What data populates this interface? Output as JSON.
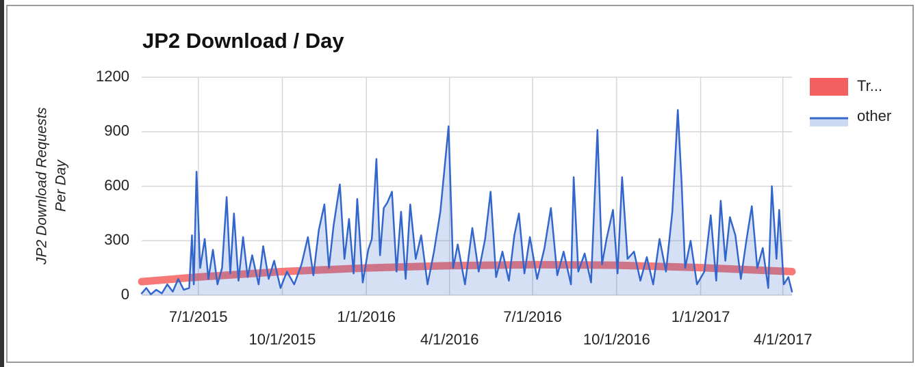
{
  "chart_data": {
    "type": "line",
    "title": "JP2 Download / Day",
    "y_label_lines": [
      "JP2 Download Requests",
      "Per Day"
    ],
    "ylim": [
      0,
      1200
    ],
    "yticks": [
      0,
      300,
      600,
      900,
      1200
    ],
    "xlim": [
      "2015-04-30",
      "2017-04-11"
    ],
    "xticks": [
      {
        "value": "2015-07-01",
        "label": "7/1/2015"
      },
      {
        "value": "2015-10-01",
        "label": "10/1/2015"
      },
      {
        "value": "2016-01-01",
        "label": "1/1/2016"
      },
      {
        "value": "2016-04-01",
        "label": "4/1/2016"
      },
      {
        "value": "2016-07-01",
        "label": "7/1/2016"
      },
      {
        "value": "2016-10-01",
        "label": "10/1/2016"
      },
      {
        "value": "2017-01-01",
        "label": "1/1/2017"
      },
      {
        "value": "2017-04-01",
        "label": "4/1/2017"
      }
    ],
    "grid": true,
    "legend": "right",
    "x": [
      "2015-04-30",
      "2015-05-05",
      "2015-05-10",
      "2015-05-16",
      "2015-05-22",
      "2015-05-28",
      "2015-06-03",
      "2015-06-09",
      "2015-06-15",
      "2015-06-21",
      "2015-06-24",
      "2015-06-26",
      "2015-06-29",
      "2015-07-03",
      "2015-07-08",
      "2015-07-12",
      "2015-07-17",
      "2015-07-22",
      "2015-07-27",
      "2015-08-01",
      "2015-08-05",
      "2015-08-09",
      "2015-08-14",
      "2015-08-19",
      "2015-08-24",
      "2015-08-29",
      "2015-09-05",
      "2015-09-10",
      "2015-09-16",
      "2015-09-22",
      "2015-09-29",
      "2015-10-06",
      "2015-10-14",
      "2015-10-22",
      "2015-10-29",
      "2015-11-04",
      "2015-11-10",
      "2015-11-16",
      "2015-11-21",
      "2015-11-26",
      "2015-12-03",
      "2015-12-08",
      "2015-12-13",
      "2015-12-18",
      "2015-12-22",
      "2015-12-28",
      "2016-01-03",
      "2016-01-07",
      "2016-01-12",
      "2016-01-16",
      "2016-01-20",
      "2016-01-24",
      "2016-01-29",
      "2016-02-03",
      "2016-02-08",
      "2016-02-13",
      "2016-02-18",
      "2016-02-24",
      "2016-03-01",
      "2016-03-08",
      "2016-03-15",
      "2016-03-22",
      "2016-03-31",
      "2016-04-05",
      "2016-04-10",
      "2016-04-18",
      "2016-04-26",
      "2016-05-03",
      "2016-05-10",
      "2016-05-16",
      "2016-05-22",
      "2016-05-29",
      "2016-06-05",
      "2016-06-11",
      "2016-06-16",
      "2016-06-22",
      "2016-06-28",
      "2016-07-06",
      "2016-07-14",
      "2016-07-21",
      "2016-07-28",
      "2016-08-04",
      "2016-08-12",
      "2016-08-15",
      "2016-08-20",
      "2016-08-27",
      "2016-09-03",
      "2016-09-10",
      "2016-09-15",
      "2016-09-20",
      "2016-09-27",
      "2016-10-02",
      "2016-10-07",
      "2016-10-13",
      "2016-10-20",
      "2016-10-27",
      "2016-11-03",
      "2016-11-10",
      "2016-11-17",
      "2016-11-24",
      "2016-12-01",
      "2016-12-07",
      "2016-12-11",
      "2016-12-15",
      "2016-12-21",
      "2016-12-28",
      "2017-01-05",
      "2017-01-12",
      "2017-01-18",
      "2017-01-23",
      "2017-01-28",
      "2017-02-02",
      "2017-02-08",
      "2017-02-14",
      "2017-02-20",
      "2017-02-26",
      "2017-03-04",
      "2017-03-10",
      "2017-03-16",
      "2017-03-20",
      "2017-03-25",
      "2017-03-28",
      "2017-04-02",
      "2017-04-07",
      "2017-04-11"
    ],
    "series": [
      {
        "name": "Tr...",
        "color": "#f4605f",
        "x": [
          "2015-04-30",
          "2015-07-01",
          "2015-10-01",
          "2016-01-01",
          "2016-04-01",
          "2016-07-01",
          "2016-10-01",
          "2017-01-01",
          "2017-04-11"
        ],
        "values": [
          75,
          100,
          130,
          150,
          163,
          168,
          165,
          152,
          130
        ]
      },
      {
        "name": "other",
        "color": "#3366cc",
        "values": [
          10,
          40,
          5,
          30,
          10,
          60,
          20,
          90,
          30,
          40,
          330,
          60,
          680,
          150,
          310,
          90,
          250,
          60,
          150,
          540,
          120,
          450,
          80,
          320,
          100,
          220,
          60,
          270,
          90,
          190,
          40,
          130,
          60,
          170,
          320,
          110,
          360,
          500,
          150,
          380,
          610,
          200,
          420,
          120,
          530,
          70,
          250,
          310,
          750,
          220,
          480,
          510,
          570,
          130,
          460,
          90,
          500,
          200,
          330,
          60,
          240,
          460,
          930,
          150,
          280,
          60,
          370,
          130,
          310,
          570,
          100,
          240,
          80,
          330,
          450,
          120,
          320,
          90,
          260,
          480,
          110,
          240,
          60,
          650,
          130,
          230,
          70,
          910,
          170,
          310,
          470,
          120,
          650,
          200,
          240,
          80,
          210,
          60,
          310,
          130,
          460,
          1020,
          630,
          150,
          300,
          60,
          130,
          440,
          80,
          520,
          190,
          430,
          330,
          90,
          300,
          490,
          150,
          260,
          40,
          600,
          200,
          470,
          60,
          100,
          20
        ]
      }
    ]
  }
}
